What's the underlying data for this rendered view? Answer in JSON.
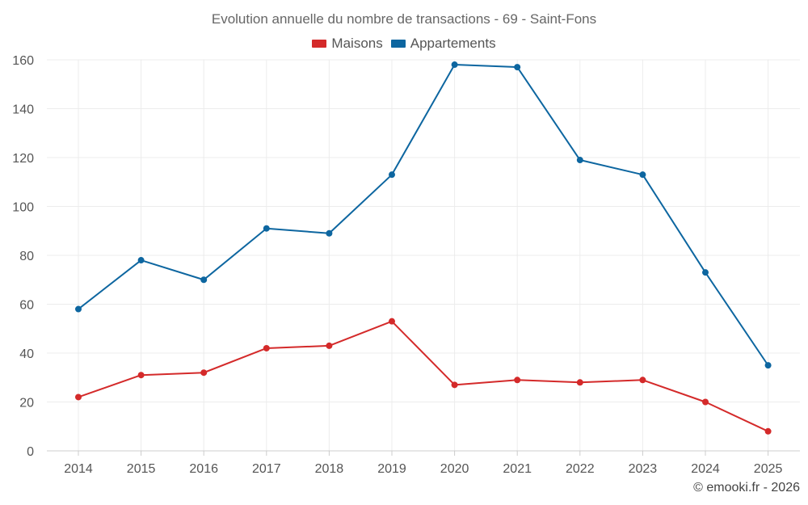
{
  "chart_data": {
    "type": "line",
    "title": "Evolution annuelle du nombre de transactions - 69 - Saint-Fons",
    "xlabel": "",
    "ylabel": "",
    "x": [
      "2014",
      "2015",
      "2016",
      "2017",
      "2018",
      "2019",
      "2020",
      "2021",
      "2022",
      "2023",
      "2024",
      "2025"
    ],
    "ylim": [
      0,
      160
    ],
    "yticks": [
      "0",
      "20",
      "40",
      "60",
      "80",
      "100",
      "120",
      "140",
      "160"
    ],
    "grid": true,
    "legend": "top-center",
    "series": [
      {
        "name": "Maisons",
        "color": "#d42a2a",
        "values": [
          22,
          31,
          32,
          42,
          43,
          53,
          27,
          29,
          28,
          29,
          20,
          8
        ]
      },
      {
        "name": "Appartements",
        "color": "#0d66a0",
        "values": [
          58,
          78,
          70,
          91,
          89,
          113,
          158,
          157,
          119,
          113,
          73,
          35
        ]
      }
    ]
  },
  "credit": "© emooki.fr - 2026"
}
